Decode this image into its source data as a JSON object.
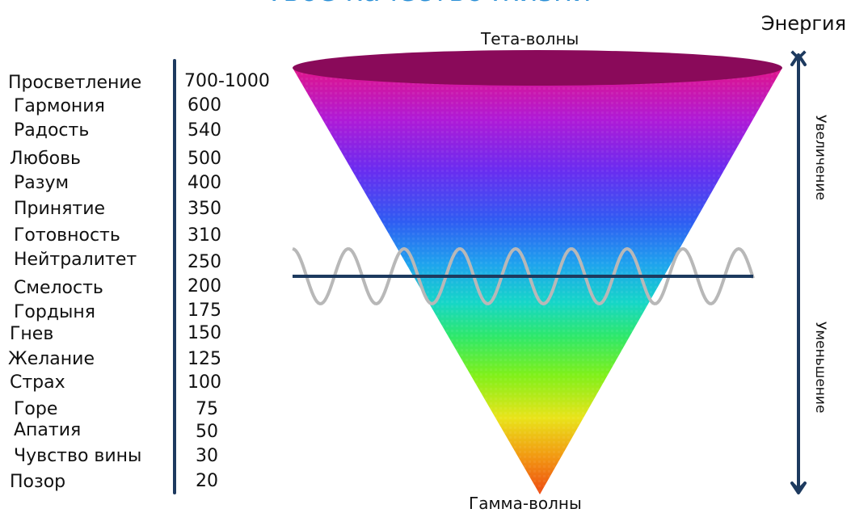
{
  "header": {
    "title_partial": "Твое качество жизни"
  },
  "scale": {
    "levels": [
      {
        "name": "Просветление",
        "value": "700-1000"
      },
      {
        "name": "Гармония",
        "value": "600"
      },
      {
        "name": "Радость",
        "value": "540"
      },
      {
        "name": "Любовь",
        "value": "500"
      },
      {
        "name": "Разум",
        "value": "400"
      },
      {
        "name": "Принятие",
        "value": "350"
      },
      {
        "name": "Готовность",
        "value": "310"
      },
      {
        "name": "Нейтралитет",
        "value": "250"
      },
      {
        "name": "Смелость",
        "value": "200"
      },
      {
        "name": "Гордыня",
        "value": "175"
      },
      {
        "name": "Гнев",
        "value": "150"
      },
      {
        "name": "Желание",
        "value": "125"
      },
      {
        "name": "Страх",
        "value": "100"
      },
      {
        "name": "Горе",
        "value": "75"
      },
      {
        "name": "Апатия",
        "value": "50"
      },
      {
        "name": "Чувство вины",
        "value": "30"
      },
      {
        "name": "Позор",
        "value": "20"
      }
    ]
  },
  "cone": {
    "top_label": "Тета-волны",
    "bottom_label": "Гамма-волны"
  },
  "energy": {
    "title": "Энергия",
    "up_label": "Увеличение",
    "down_label": "Уменьшение"
  },
  "colors": {
    "title": "#2a8fd6",
    "scale_bar": "#1d3a5f",
    "threshold_line": "#1d3a5f",
    "arrow": "#1d3a5f",
    "wave": "#b8b8b8",
    "cone_top_ellipse": "#8a0a5a",
    "gradient_stops": [
      "#e0158a",
      "#b01ad6",
      "#6a2cf0",
      "#2f5cf2",
      "#1fa3ee",
      "#16d6c8",
      "#2ee86a",
      "#7ff01a",
      "#e9e41a",
      "#f29a12",
      "#ee4a12"
    ]
  }
}
